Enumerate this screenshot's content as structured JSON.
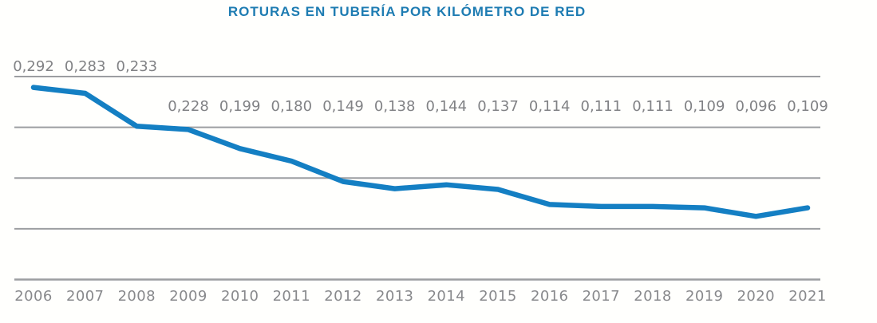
{
  "page": {
    "background": "#fffffd"
  },
  "chart_data": {
    "type": "line",
    "title": "ROTURAS EN TUBERÍA POR KILÓMETRO DE RED",
    "categories": [
      "2006",
      "2007",
      "2008",
      "2009",
      "2010",
      "2011",
      "2012",
      "2013",
      "2014",
      "2015",
      "2016",
      "2017",
      "2018",
      "2019",
      "2020",
      "2021"
    ],
    "values": [
      0.292,
      0.283,
      0.233,
      0.228,
      0.199,
      0.18,
      0.149,
      0.138,
      0.144,
      0.137,
      0.114,
      0.111,
      0.111,
      0.109,
      0.096,
      0.109
    ],
    "value_labels": [
      "0,292",
      "0,283",
      "0,233",
      "0,228",
      "0,199",
      "0,180",
      "0,149",
      "0,138",
      "0,144",
      "0,137",
      "0,114",
      "0,111",
      "0,111",
      "0,109",
      "0,096",
      "0,109"
    ],
    "xlabel": "",
    "ylabel": "",
    "ylim": [
      0,
      0.3
    ],
    "grid": {
      "visible": true,
      "horizontal_lines": 5
    },
    "legend": "none",
    "y_axis_tick_labels": "none",
    "decimal_separator": ",",
    "colors": {
      "line": "#147fc3",
      "title": "#1e7cb2",
      "value_labels": "#818285",
      "axis_labels": "#88898c",
      "gridline": "#9c9ea1"
    }
  }
}
